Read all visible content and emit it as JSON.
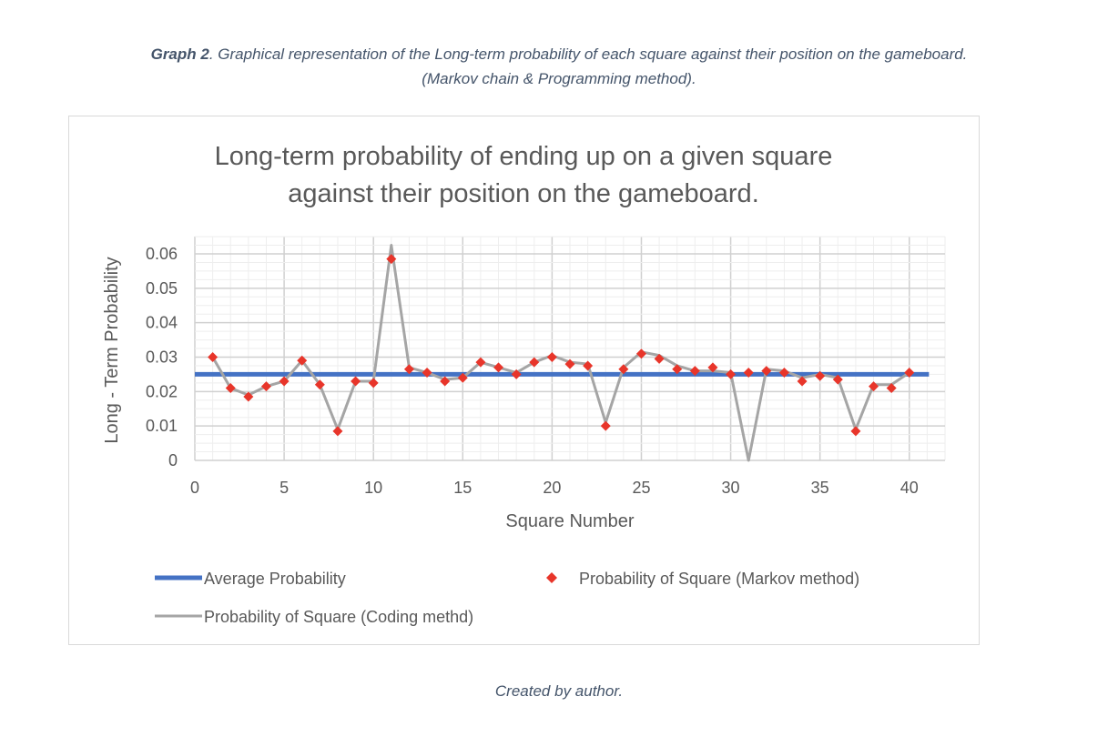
{
  "caption": {
    "label": "Graph 2",
    "text": ". Graphical representation of the Long-term probability of each square against their position on the gameboard.",
    "line2": "(Markov chain & Programming method).",
    "credit": "Created by author."
  },
  "chart_data": {
    "type": "line",
    "title_line1": "Long-term probability of ending up on a given square",
    "title_line2": "against their position on the gameboard.",
    "xlabel": "Square Number",
    "ylabel": "Long - Term Probability",
    "xlim": [
      0,
      42
    ],
    "ylim": [
      0,
      0.06
    ],
    "x_ticks": [
      "0",
      "5",
      "10",
      "15",
      "20",
      "25",
      "30",
      "35",
      "40"
    ],
    "y_ticks": [
      "0",
      "0.01",
      "0.02",
      "0.03",
      "0.04",
      "0.05",
      "0.06"
    ],
    "grid": true,
    "legend_position": "bottom",
    "series": [
      {
        "name": "Average Probability",
        "kind": "line",
        "color": "#4472c4",
        "x": [
          0,
          41.1
        ],
        "y": [
          0.025,
          0.025
        ]
      },
      {
        "name": "Probability of Square (Markov method)",
        "kind": "scatter",
        "color": "#e8352a",
        "x": [
          1,
          2,
          3,
          4,
          5,
          6,
          7,
          8,
          9,
          10,
          11,
          12,
          13,
          14,
          15,
          16,
          17,
          18,
          19,
          20,
          21,
          22,
          23,
          24,
          25,
          26,
          27,
          28,
          29,
          30,
          31,
          32,
          33,
          34,
          35,
          36,
          37,
          38,
          39,
          40
        ],
        "y": [
          0.03,
          0.021,
          0.0185,
          0.0215,
          0.023,
          0.029,
          0.022,
          0.0085,
          0.023,
          0.0225,
          0.0585,
          0.0265,
          0.0255,
          0.023,
          0.024,
          0.0285,
          0.027,
          0.025,
          0.0285,
          0.03,
          0.028,
          0.0275,
          0.01,
          0.0265,
          0.031,
          0.0295,
          0.0265,
          0.026,
          0.027,
          0.025,
          0.0255,
          0.026,
          0.0255,
          0.023,
          0.0245,
          0.0235,
          0.0085,
          0.0215,
          0.021,
          0.0255
        ]
      },
      {
        "name": "Probability of Square (Coding methd)",
        "kind": "line",
        "color": "#a5a5a5",
        "x": [
          1,
          2,
          3,
          4,
          5,
          6,
          7,
          8,
          9,
          10,
          11,
          12,
          13,
          14,
          15,
          16,
          17,
          18,
          19,
          20,
          21,
          22,
          23,
          24,
          25,
          26,
          27,
          28,
          29,
          30,
          31,
          32,
          33,
          34,
          35,
          36,
          37,
          38,
          39,
          40
        ],
        "y": [
          0.03,
          0.021,
          0.019,
          0.0215,
          0.023,
          0.029,
          0.022,
          0.009,
          0.023,
          0.023,
          0.0625,
          0.027,
          0.0255,
          0.0235,
          0.024,
          0.0285,
          0.027,
          0.0255,
          0.0285,
          0.0305,
          0.0285,
          0.028,
          0.011,
          0.027,
          0.0315,
          0.0305,
          0.0275,
          0.026,
          0.026,
          0.0255,
          0.0,
          0.0265,
          0.026,
          0.024,
          0.025,
          0.024,
          0.009,
          0.022,
          0.022,
          0.0255
        ]
      }
    ]
  }
}
